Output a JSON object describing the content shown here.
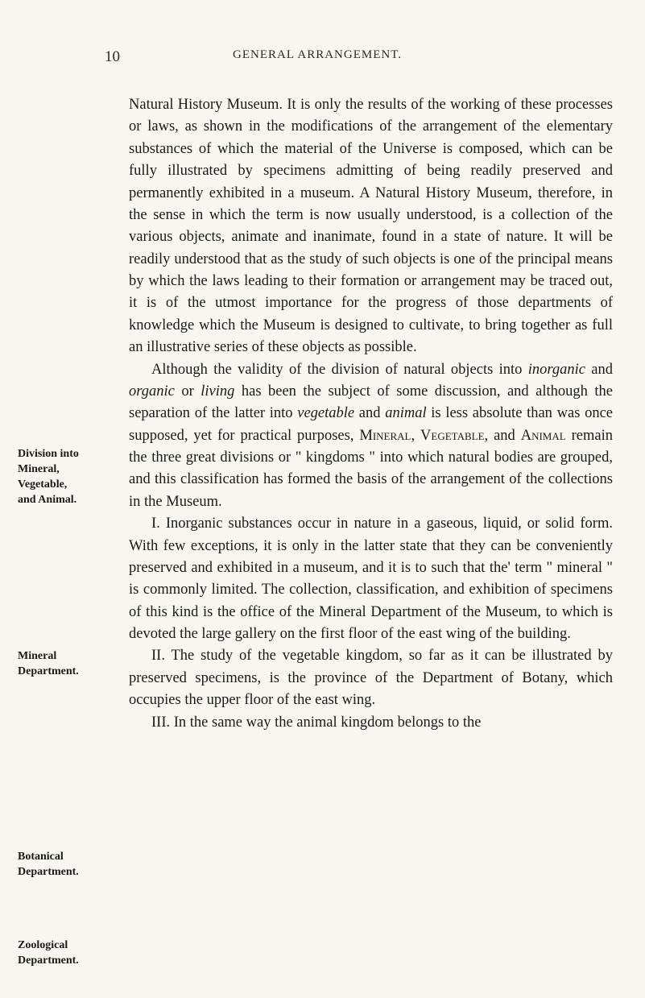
{
  "page_number": "10",
  "header_title": "GENERAL ARRANGEMENT.",
  "margin_notes": {
    "note1_line1": "Division into",
    "note1_line2": "Mineral,",
    "note1_line3": "Vegetable,",
    "note1_line4": "and Animal.",
    "note2_line1": "Mineral",
    "note2_line2": "Department.",
    "note3_line1": "Botanical",
    "note3_line2": "Department.",
    "note4_line1": "Zoological",
    "note4_line2": "Department."
  },
  "paragraphs": {
    "p1": "Natural History Museum. It is only the results of the working of these processes or laws, as shown in the modifications of the arrangement of the elementary substances of which the material of the Universe is composed, which can be fully illustrated by specimens admitting of being readily preserved and permanently exhibited in a museum. A Natural History Museum, therefore, in the sense in which the term is now usually understood, is a collection of the various objects, animate and inanimate, found in a state of nature. It will be readily understood that as the study of such objects is one of the principal means by which the laws leading to their formation or arrangement may be traced out, it is of the utmost importance for the progress of those departments of knowledge which the Museum is designed to cultivate, to bring together as full an illustrative series of these objects as possible.",
    "p2_start": "Although the validity of the division of natural objects into ",
    "p2_italic1": "inorganic",
    "p2_mid1": " and ",
    "p2_italic2": "organic",
    "p2_mid2": " or ",
    "p2_italic3": "living",
    "p2_mid3": " has been the subject of some discussion, and although the separation of the latter into ",
    "p2_italic4": "vegetable",
    "p2_mid4": " and ",
    "p2_italic5": "animal",
    "p2_mid5": " is less absolute than was once supposed, yet for practical purposes, ",
    "p2_sc1": "Mineral",
    "p2_mid6": ", ",
    "p2_sc2": "Vegetable",
    "p2_mid7": ", and ",
    "p2_sc3": "Animal",
    "p2_end": " remain the three great divisions or \" kingdoms \" into which natural bodies are grouped, and this classification has formed the basis of the arrangement of the collections in the Museum.",
    "p3": "I. Inorganic substances occur in nature in a gaseous, liquid, or solid form. With few exceptions, it is only in the latter state that they can be conveniently preserved and exhibited in a museum, and it is to such that the' term \" mineral \" is commonly limited. The collection, classification, and exhibition of specimens of this kind is the office of the Mineral Department of the Museum, to which is devoted the large gallery on the first floor of the east wing of the building.",
    "p4": "II. The study of the vegetable kingdom, so far as it can be illustrated by preserved specimens, is the province of the Department of Botany, which occupies the upper floor of the east wing.",
    "p5": "III. In the same way the animal kingdom belongs to the"
  }
}
